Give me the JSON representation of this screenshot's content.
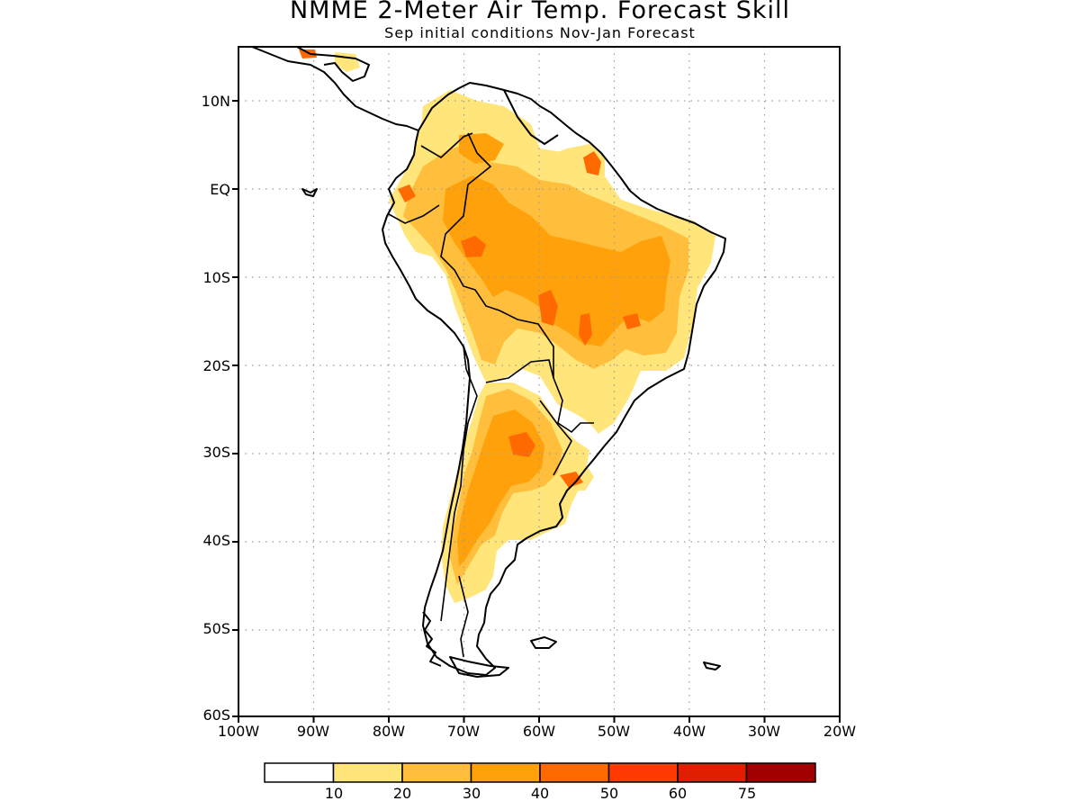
{
  "title": "NMME 2-Meter Air Temp. Forecast Skill",
  "subtitle": "Sep initial conditions  Nov-Jan Forecast",
  "map": {
    "lat_labels": [
      "10N",
      "EQ",
      "10S",
      "20S",
      "30S",
      "40S",
      "50S",
      "60S"
    ],
    "lon_labels": [
      "100W",
      "90W",
      "80W",
      "70W",
      "60W",
      "50W",
      "40W",
      "30W",
      "20W"
    ],
    "grid": "dotted"
  },
  "colorbar": {
    "labels": [
      "10",
      "20",
      "30",
      "40",
      "50",
      "60",
      "75"
    ],
    "colors": [
      "#ffffff",
      "#ffe57a",
      "#ffbf3c",
      "#ffa10a",
      "#ff6a00",
      "#ff3a00",
      "#e01e00",
      "#a20000"
    ]
  },
  "shading": {
    "levels": [
      {
        "level": 1,
        "color": "#ffe57a"
      },
      {
        "level": 2,
        "color": "#ffbf3c"
      },
      {
        "level": 3,
        "color": "#ffa10a"
      },
      {
        "level": 4,
        "color": "#ff6a00"
      }
    ]
  },
  "colors": {
    "coastline": "#000000",
    "frame": "#000000",
    "grid": "#9a9a9a"
  }
}
